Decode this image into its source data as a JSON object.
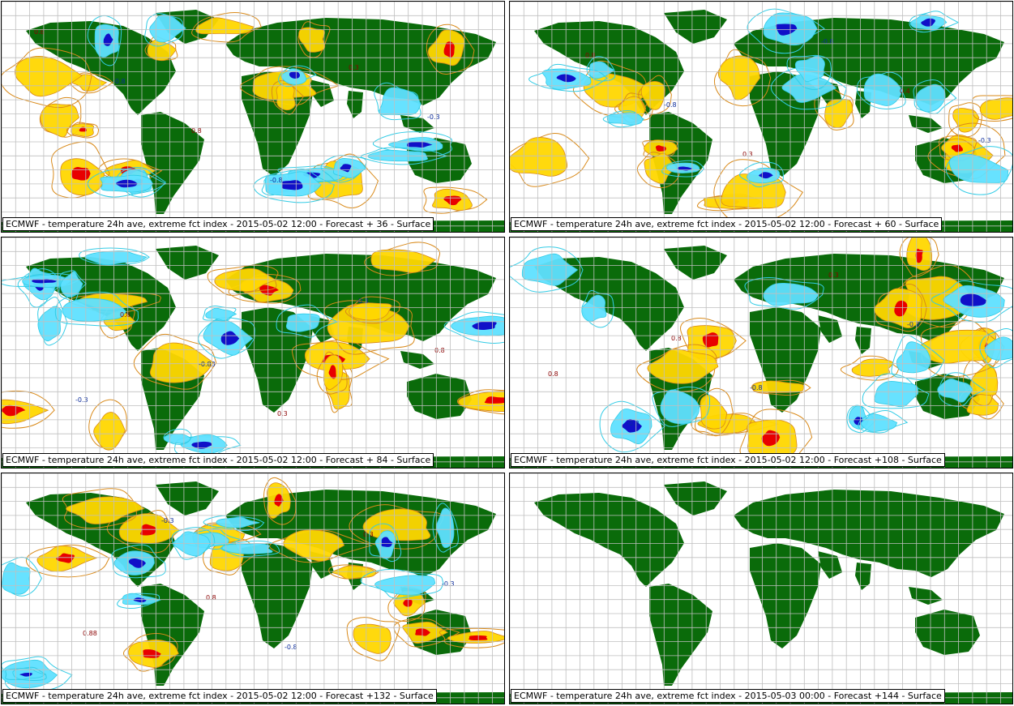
{
  "colors": {
    "land": "#0a6b0a",
    "ocean": "#ffffff",
    "grid": "#bfbfbf",
    "warm_contour": "#d98a1a",
    "warm_fill": "#ffd700",
    "hot_fill": "#e80000",
    "cool_contour": "#33cce6",
    "cool_fill": "#5fe0ff",
    "cold_fill": "#1010c8"
  },
  "panels": [
    {
      "caption": "ECMWF - temperature 24h ave, extreme fct index - 2015-05-02 12:00 - Forecast + 36 - Surface",
      "labels": [
        "0.8",
        "-0.8",
        "0.8",
        "-0.8",
        "0.3",
        "-0.3"
      ]
    },
    {
      "caption": "ECMWF - temperature 24h ave, extreme fct index - 2015-05-02 12:00 - Forecast + 60 - Surface",
      "labels": [
        "0.8",
        "-0.8",
        "0.3",
        "-0.8",
        "0.4",
        "-0.3"
      ]
    },
    {
      "caption": "ECMWF - temperature 24h ave, extreme fct index - 2015-05-02 12:00 - Forecast + 84 - Surface",
      "labels": [
        "0.8",
        "-0.83",
        "0.3",
        "-0.3",
        "0.8",
        "-0.3"
      ]
    },
    {
      "caption": "ECMWF - temperature 24h ave, extreme fct index - 2015-05-02 12:00 - Forecast +108 - Surface",
      "labels": [
        "0.8",
        "-0.8",
        "0.3",
        "-0.8",
        "0.8",
        "-0.3"
      ]
    },
    {
      "caption": "ECMWF - temperature 24h ave, extreme fct index - 2015-05-02 12:00 - Forecast +132 - Surface",
      "labels": [
        "0.8",
        "-0.8",
        "0.3",
        "-0.3",
        "0.88",
        "-0.3"
      ]
    },
    {
      "caption": "ECMWF - temperature 24h ave, extreme fct index - 2015-05-03 00:00 - Forecast +144 - Surface",
      "labels": []
    }
  ]
}
